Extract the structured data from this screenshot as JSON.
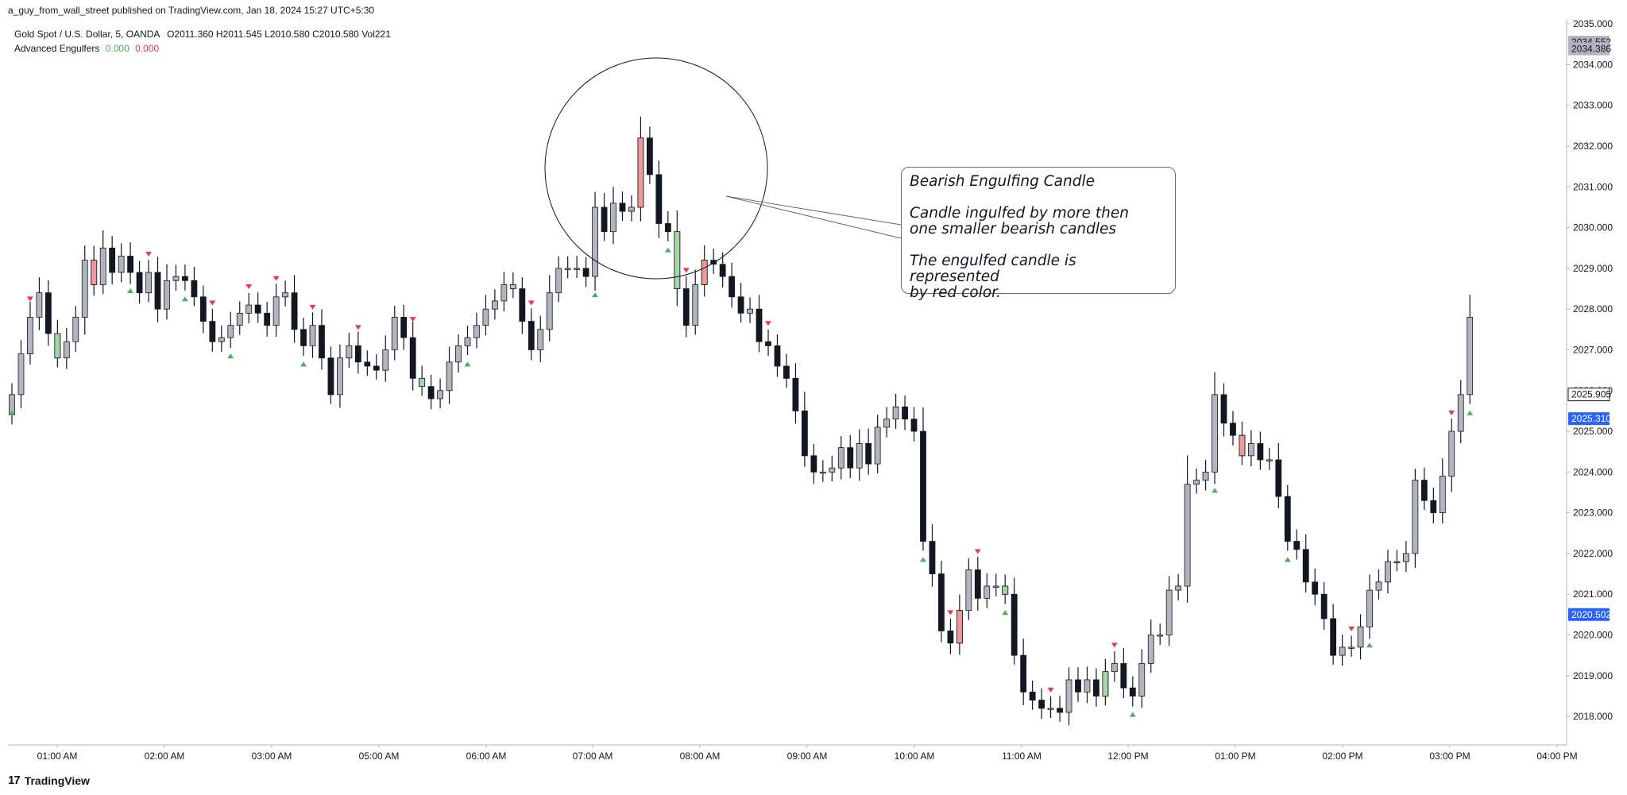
{
  "header": {
    "published": "a_guy_from_wall_street published on TradingView.com, Jan 18, 2024 15:27 UTC+5:30"
  },
  "legend": {
    "symbol": "Gold Spot / U.S. Dollar, 5, OANDA",
    "ohlc": "O2011.360  H2011.545  L2010.580  C2010.580  Vol221",
    "indicator": "Advanced Engulfers",
    "val1": "0.000",
    "val2": "0.000"
  },
  "annotation": {
    "line1": "Bearish Engulfing Candle",
    "line2": "Candle ingulfed by more then",
    "line3": "one smaller bearish candles",
    "line4": "The engulfed candle is represented",
    "line5": "by red color."
  },
  "brand": "TradingView",
  "colors": {
    "bull": "#b2b5be",
    "bear": "#131722",
    "engulf_bull": "#a5d6a7",
    "engulf_bear": "#ef9a9a",
    "arrow_up": "#4caf50",
    "arrow_down": "#f23645",
    "label_blue": "#2962ff"
  },
  "chart_data": {
    "type": "candlestick",
    "x_ticks": [
      "01:00 AM",
      "02:00 AM",
      "03:00 AM",
      "05:00 AM",
      "06:00 AM",
      "07:00 AM",
      "08:00 AM",
      "09:00 AM",
      "10:00 AM",
      "11:00 AM",
      "12:00 PM",
      "01:00 PM",
      "02:00 PM",
      "03:00 PM",
      "04:00 PM"
    ],
    "y_ticks": [
      2018,
      2019,
      2020,
      2021,
      2022,
      2023,
      2024,
      2025,
      2026,
      2027,
      2028,
      2029,
      2030,
      2031,
      2032,
      2033,
      2034,
      2035
    ],
    "y_tick_labels": [
      "2018.000",
      "2019.000",
      "2020.000",
      "2021.000",
      "2022.000",
      "2023.000",
      "2024.000",
      "2025.000",
      "2026.000",
      "2027.000",
      "2028.000",
      "2029.000",
      "2030.000",
      "2031.000",
      "2032.000",
      "2033.000",
      "2034.000",
      "2035.000"
    ],
    "ylim": [
      2017.3,
      2035.1
    ],
    "price_labels": [
      {
        "value": 2034.552,
        "text": "2034.552",
        "style": "gray"
      },
      {
        "value": 2034.386,
        "text": "2034.386",
        "style": "gray"
      },
      {
        "value": 2025.905,
        "text": "2025.905",
        "style": "outline"
      },
      {
        "value": 2025.31,
        "text": "2025.310",
        "style": "blue"
      },
      {
        "value": 2020.502,
        "text": "2020.502",
        "style": "blue"
      }
    ],
    "closes": [
      2025.9,
      2026.9,
      2027.8,
      2028.4,
      2027.4,
      2026.8,
      2027.2,
      2027.8,
      2029.2,
      2028.6,
      2029.5,
      2028.9,
      2029.3,
      2028.9,
      2028.4,
      2028.9,
      2028.0,
      2028.7,
      2028.8,
      2028.7,
      2028.3,
      2027.7,
      2027.2,
      2027.3,
      2027.6,
      2027.9,
      2028.1,
      2027.9,
      2027.6,
      2028.3,
      2028.4,
      2027.5,
      2027.1,
      2027.6,
      2026.8,
      2025.9,
      2026.8,
      2027.1,
      2026.7,
      2026.6,
      2026.5,
      2027.0,
      2027.8,
      2027.3,
      2026.3,
      2026.1,
      2025.8,
      2026.0,
      2026.7,
      2027.1,
      2027.3,
      2027.6,
      2028.0,
      2028.2,
      2028.6,
      2028.5,
      2027.7,
      2027.0,
      2027.5,
      2028.4,
      2029.0,
      2029.0,
      2029.0,
      2028.8,
      2030.5,
      2029.9,
      2030.6,
      2030.4,
      2030.5,
      2032.2,
      2031.3,
      2030.1,
      2029.9,
      2028.5,
      2027.6,
      2028.6,
      2029.2,
      2029.1,
      2028.8,
      2028.3,
      2027.9,
      2028.0,
      2027.2,
      2027.1,
      2026.6,
      2026.3,
      2025.5,
      2024.4,
      2024.0,
      2024.0,
      2024.1,
      2024.6,
      2024.1,
      2024.7,
      2024.2,
      2025.1,
      2025.3,
      2025.6,
      2025.3,
      2025.0,
      2022.3,
      2021.5,
      2020.1,
      2019.8,
      2020.6,
      2021.6,
      2020.9,
      2021.2,
      2021.2,
      2021.0,
      2019.5,
      2018.6,
      2018.4,
      2018.2,
      2018.2,
      2018.1,
      2018.9,
      2018.6,
      2018.9,
      2018.5,
      2019.1,
      2019.3,
      2018.7,
      2018.5,
      2019.3,
      2020.0,
      2020.0,
      2021.1,
      2021.2,
      2023.7,
      2023.8,
      2024.0,
      2025.9,
      2025.2,
      2024.9,
      2024.4,
      2024.7,
      2024.3,
      2024.3,
      2023.4,
      2022.3,
      2022.1,
      2021.3,
      2021.0,
      2020.4,
      2019.5,
      2019.7,
      2019.7,
      2020.2,
      2021.1,
      2021.3,
      2021.8,
      2021.8,
      2022.0,
      2023.8,
      2023.3,
      2023.0,
      2023.9,
      2025.0,
      2025.9,
      2027.8
    ]
  }
}
